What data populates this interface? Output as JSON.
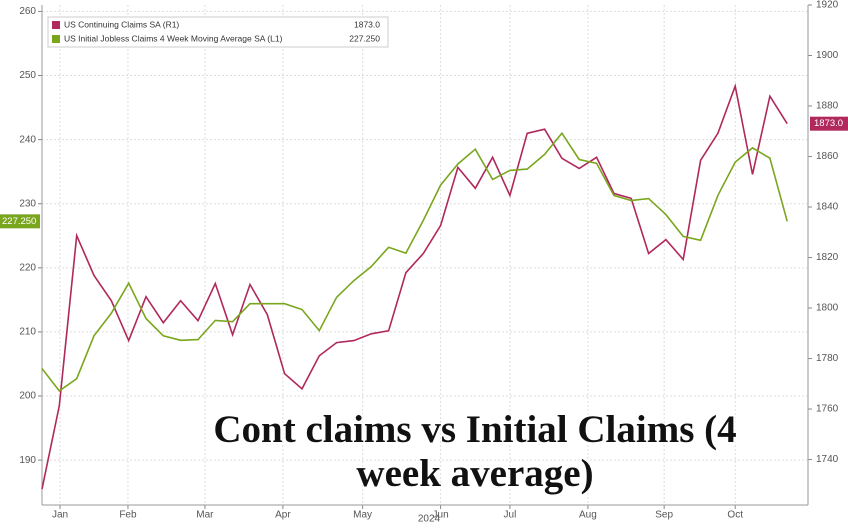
{
  "chart_data": {
    "type": "line",
    "title": "Cont claims vs Initial Claims (4 week average)",
    "x_axis_label": "2024",
    "xlim": [
      0,
      44.2
    ],
    "xticks": [
      {
        "value": 1.04,
        "label": "Jan"
      },
      {
        "value": 4.96,
        "label": "Feb"
      },
      {
        "value": 9.4,
        "label": "Mar"
      },
      {
        "value": 13.9,
        "label": "Apr"
      },
      {
        "value": 18.5,
        "label": "May"
      },
      {
        "value": 23,
        "label": "Jun"
      },
      {
        "value": 27,
        "label": "Jul"
      },
      {
        "value": 31.5,
        "label": "Aug"
      },
      {
        "value": 35.9,
        "label": "Sep"
      },
      {
        "value": 40,
        "label": "Oct"
      }
    ],
    "ylim": [
      183,
      261
    ],
    "yticks": [
      190,
      200,
      210,
      220,
      230,
      240,
      250,
      260
    ],
    "y2lim": [
      1722,
      1920
    ],
    "y2ticks": [
      1740,
      1760,
      1780,
      1800,
      1820,
      1840,
      1860,
      1880,
      1900,
      1920
    ],
    "grid": true,
    "legend": "top-left",
    "series": [
      {
        "name": "US Continuing Claims SA (R1)",
        "color": "#b0285c",
        "axis": "y2",
        "last_label": "1873.0",
        "values": [
          1728.3,
          1761.3,
          1828.7,
          1812.9,
          1802.9,
          1787.1,
          1804.5,
          1794.2,
          1802.9,
          1795,
          1809.7,
          1789.4,
          1809.3,
          1797.4,
          1774,
          1768,
          1781.1,
          1786.3,
          1787.1,
          1789.8,
          1791,
          1814,
          1821.6,
          1832.7,
          1855.7,
          1847.4,
          1859.7,
          1844.6,
          1869.2,
          1870.8,
          1859.3,
          1855.3,
          1859.7,
          1845.4,
          1843.4,
          1821.6,
          1827.1,
          1819.2,
          1858.5,
          1869.2,
          1887.9,
          1852.9,
          1883.9,
          1873.0
        ]
      },
      {
        "name": "US Initial Jobless Claims 4 Week Moving Average SA (L1)",
        "color": "#7aa61e",
        "axis": "y",
        "last_label": "227.250",
        "values": [
          204.3,
          200.8,
          202.7,
          209.4,
          212.9,
          217.6,
          212.1,
          209.4,
          208.7,
          208.8,
          211.8,
          211.6,
          214.4,
          214.4,
          214.4,
          213.5,
          210.2,
          215.4,
          218,
          220.2,
          223.2,
          222.3,
          227.4,
          232.9,
          236.2,
          238.5,
          233.8,
          235.2,
          235.4,
          237.7,
          241,
          236.9,
          236.3,
          231.3,
          230.5,
          230.8,
          228.3,
          224.9,
          224.3,
          231.3,
          236.5,
          238.7,
          237.1,
          227.25
        ]
      }
    ]
  }
}
